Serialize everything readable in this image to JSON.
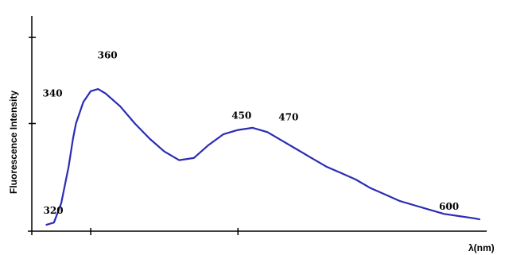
{
  "chart_data": {
    "type": "line",
    "title": "",
    "xlabel": "λ(nm)",
    "ylabel": "Fluorescence Intensity",
    "xlim": [
      310,
      620
    ],
    "ylim": [
      0,
      1.0
    ],
    "x_ticks": [
      350,
      450
    ],
    "y_ticks": [
      0.5,
      0.9
    ],
    "grid": false,
    "colors": {
      "series": "#2b2bb5",
      "axis": "#000000"
    },
    "series": [
      {
        "x": [
          320,
          325,
          330,
          335,
          338,
          340,
          345,
          350,
          355,
          360,
          370,
          380,
          390,
          400,
          410,
          420,
          430,
          440,
          450,
          460,
          470,
          480,
          490,
          500,
          510,
          520,
          530,
          540,
          550,
          560,
          570,
          580,
          590,
          600,
          610,
          614
        ],
        "y": [
          0.03,
          0.04,
          0.13,
          0.3,
          0.43,
          0.5,
          0.6,
          0.65,
          0.66,
          0.64,
          0.58,
          0.5,
          0.43,
          0.37,
          0.33,
          0.34,
          0.4,
          0.45,
          0.47,
          0.48,
          0.46,
          0.42,
          0.38,
          0.34,
          0.3,
          0.27,
          0.24,
          0.2,
          0.17,
          0.14,
          0.12,
          0.1,
          0.08,
          0.07,
          0.06,
          0.055
        ]
      }
    ],
    "annotations": [
      {
        "text": "320",
        "x": 320,
        "y": 0.03
      },
      {
        "text": "340",
        "x": 340,
        "y": 0.5
      },
      {
        "text": "360",
        "x": 360,
        "y": 0.64
      },
      {
        "text": "450",
        "x": 450,
        "y": 0.47
      },
      {
        "text": "470",
        "x": 470,
        "y": 0.46
      },
      {
        "text": "600",
        "x": 600,
        "y": 0.07
      }
    ]
  }
}
